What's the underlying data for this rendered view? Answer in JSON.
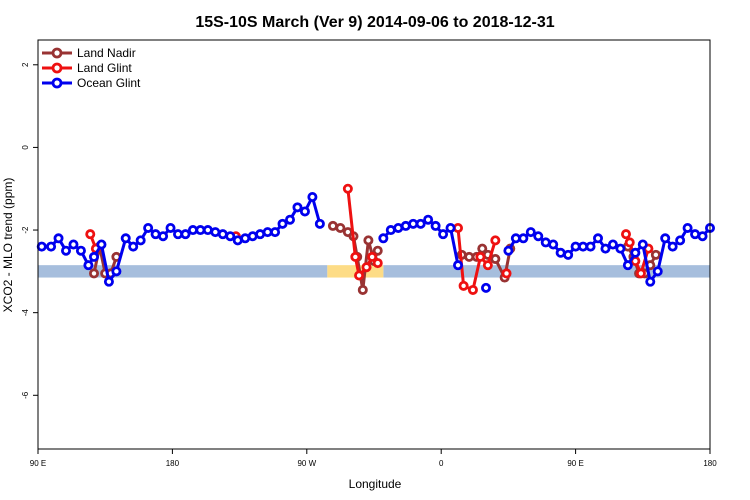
{
  "chart_data": {
    "type": "line",
    "title": "15S-10S March (Ver 9)   2014-09-06 to 2018-12-31",
    "xlabel": "Longitude",
    "ylabel": "XCO2 - MLO trend (ppm)",
    "xlim": [
      0,
      360
    ],
    "ylim": [
      -7.3,
      2.6
    ],
    "x_ticks": [
      {
        "value": 0,
        "label": "90 E"
      },
      {
        "value": 72,
        "label": "180"
      },
      {
        "value": 144,
        "label": "90 W"
      },
      {
        "value": 216,
        "label": "0"
      },
      {
        "value": 288,
        "label": "90 E"
      },
      {
        "value": 360,
        "label": "180"
      }
    ],
    "y_ticks": [
      {
        "value": 2,
        "label": "2"
      },
      {
        "value": 0,
        "label": "0"
      },
      {
        "value": -2,
        "label": "-2"
      },
      {
        "value": -4,
        "label": "-4"
      },
      {
        "value": -6,
        "label": "-6"
      }
    ],
    "grid": false,
    "legend_position": "top-left",
    "background_bands": [
      {
        "name": "ocean",
        "color": "#a6bedd",
        "x_ranges": [
          [
            0,
            155
          ],
          [
            185,
            360
          ]
        ],
        "y_range": [
          -3.15,
          -2.85
        ]
      },
      {
        "name": "land",
        "color": "#fddc86",
        "x_ranges": [
          [
            155,
            185
          ]
        ],
        "y_range": [
          -3.15,
          -2.85
        ]
      }
    ],
    "series": [
      {
        "name": "Land Nadir",
        "color": "#993333",
        "segments": [
          [
            [
              30,
              -3.05
            ],
            [
              33,
              -2.4
            ],
            [
              36,
              -3.05
            ],
            [
              39,
              -3.05
            ],
            [
              42,
              -2.65
            ]
          ],
          [
            [
              158,
              -1.9
            ],
            [
              162,
              -1.95
            ],
            [
              166,
              -2.05
            ],
            [
              169,
              -2.15
            ],
            [
              171,
              -2.65
            ],
            [
              174,
              -3.45
            ],
            [
              177,
              -2.25
            ],
            [
              180,
              -2.75
            ],
            [
              182,
              -2.5
            ]
          ],
          [
            [
              227,
              -2.6
            ],
            [
              231,
              -2.65
            ],
            [
              235,
              -2.65
            ],
            [
              238,
              -2.45
            ],
            [
              241,
              -2.6
            ],
            [
              245,
              -2.7
            ],
            [
              250,
              -3.15
            ],
            [
              253,
              -2.45
            ]
          ],
          [
            [
              316,
              -2.4
            ],
            [
              319,
              -2.65
            ],
            [
              322,
              -3.05
            ],
            [
              325,
              -3.05
            ],
            [
              328,
              -2.85
            ],
            [
              331,
              -2.6
            ]
          ]
        ]
      },
      {
        "name": "Land Glint",
        "color": "#ee1111",
        "segments": [
          [
            [
              28,
              -2.1
            ],
            [
              31,
              -2.45
            ]
          ],
          [
            [
              106,
              -2.15
            ]
          ],
          [
            [
              166,
              -1.0
            ],
            [
              170,
              -2.65
            ],
            [
              172,
              -3.1
            ],
            [
              176,
              -2.9
            ],
            [
              179,
              -2.65
            ],
            [
              182,
              -2.8
            ]
          ],
          [
            [
              225,
              -1.95
            ],
            [
              228,
              -3.35
            ],
            [
              233,
              -3.45
            ],
            [
              237,
              -2.65
            ],
            [
              241,
              -2.85
            ],
            [
              245,
              -2.25
            ]
          ],
          [
            [
              251,
              -3.05
            ]
          ],
          [
            [
              315,
              -2.1
            ],
            [
              317,
              -2.3
            ],
            [
              320,
              -2.75
            ],
            [
              323,
              -3.05
            ],
            [
              327,
              -2.45
            ]
          ]
        ]
      },
      {
        "name": "Ocean Glint",
        "color": "#0000ee",
        "segments": [
          [
            [
              2,
              -2.4
            ],
            [
              7,
              -2.4
            ],
            [
              11,
              -2.2
            ],
            [
              15,
              -2.5
            ],
            [
              19,
              -2.35
            ],
            [
              23,
              -2.5
            ],
            [
              27,
              -2.85
            ],
            [
              30,
              -2.65
            ],
            [
              34,
              -2.35
            ],
            [
              38,
              -3.25
            ],
            [
              42,
              -3.0
            ],
            [
              47,
              -2.2
            ],
            [
              51,
              -2.4
            ],
            [
              55,
              -2.25
            ],
            [
              59,
              -1.95
            ],
            [
              63,
              -2.1
            ],
            [
              67,
              -2.15
            ],
            [
              71,
              -1.95
            ],
            [
              75,
              -2.1
            ],
            [
              79,
              -2.1
            ],
            [
              83,
              -2.0
            ],
            [
              87,
              -2.0
            ],
            [
              91,
              -2.0
            ],
            [
              95,
              -2.05
            ],
            [
              99,
              -2.1
            ],
            [
              103,
              -2.15
            ],
            [
              107,
              -2.25
            ],
            [
              111,
              -2.2
            ],
            [
              115,
              -2.15
            ],
            [
              119,
              -2.1
            ],
            [
              123,
              -2.05
            ],
            [
              127,
              -2.05
            ],
            [
              131,
              -1.85
            ],
            [
              135,
              -1.75
            ],
            [
              139,
              -1.45
            ],
            [
              143,
              -1.55
            ],
            [
              147,
              -1.2
            ],
            [
              151,
              -1.85
            ]
          ],
          [
            [
              185,
              -2.2
            ],
            [
              189,
              -2.0
            ],
            [
              193,
              -1.95
            ],
            [
              197,
              -1.9
            ],
            [
              201,
              -1.85
            ],
            [
              205,
              -1.85
            ],
            [
              209,
              -1.75
            ],
            [
              213,
              -1.9
            ],
            [
              217,
              -2.1
            ],
            [
              221,
              -1.95
            ],
            [
              225,
              -2.85
            ]
          ],
          [
            [
              240,
              -3.4
            ]
          ],
          [
            [
              252,
              -2.5
            ],
            [
              256,
              -2.2
            ],
            [
              260,
              -2.2
            ],
            [
              264,
              -2.05
            ],
            [
              268,
              -2.15
            ],
            [
              272,
              -2.3
            ],
            [
              276,
              -2.35
            ],
            [
              280,
              -2.55
            ],
            [
              284,
              -2.6
            ],
            [
              288,
              -2.4
            ],
            [
              292,
              -2.4
            ],
            [
              296,
              -2.4
            ],
            [
              300,
              -2.2
            ],
            [
              304,
              -2.45
            ],
            [
              308,
              -2.35
            ],
            [
              312,
              -2.45
            ],
            [
              316,
              -2.85
            ],
            [
              320,
              -2.55
            ],
            [
              324,
              -2.35
            ],
            [
              328,
              -3.25
            ],
            [
              332,
              -3.0
            ],
            [
              336,
              -2.2
            ],
            [
              340,
              -2.4
            ],
            [
              344,
              -2.25
            ],
            [
              348,
              -1.95
            ],
            [
              352,
              -2.1
            ],
            [
              356,
              -2.15
            ],
            [
              360,
              -1.95
            ]
          ]
        ]
      }
    ]
  }
}
